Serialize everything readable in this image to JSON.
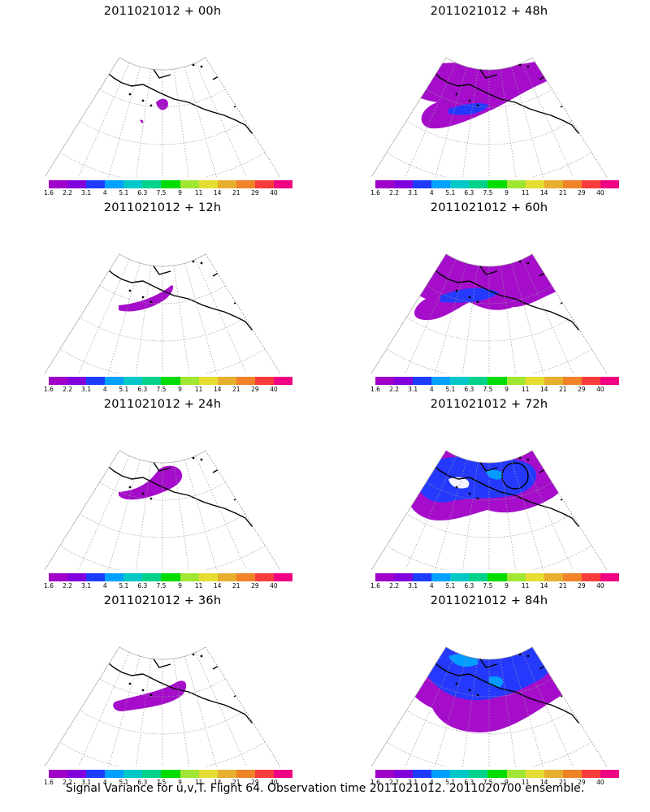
{
  "panels": [
    {
      "title": "2011021012 + 00h",
      "lead_hours": 0,
      "spread_level": 0
    },
    {
      "title": "2011021012 + 48h",
      "lead_hours": 48,
      "spread_level": 4
    },
    {
      "title": "2011021012 + 12h",
      "lead_hours": 12,
      "spread_level": 1
    },
    {
      "title": "2011021012 + 60h",
      "lead_hours": 60,
      "spread_level": 5
    },
    {
      "title": "2011021012 + 24h",
      "lead_hours": 24,
      "spread_level": 2
    },
    {
      "title": "2011021012 + 72h",
      "lead_hours": 72,
      "spread_level": 6
    },
    {
      "title": "2011021012 + 36h",
      "lead_hours": 36,
      "spread_level": 3
    },
    {
      "title": "2011021012 + 84h",
      "lead_hours": 84,
      "spread_level": 7
    }
  ],
  "colorbar": {
    "labels": [
      "1.6",
      "2.2",
      "3.1",
      "4",
      "5.1",
      "6.3",
      "7.5",
      "9",
      "11",
      "14",
      "21",
      "29",
      "40"
    ],
    "colors": [
      "#a000c8",
      "#8200dc",
      "#1e3cff",
      "#00a0ff",
      "#00c8c8",
      "#00d28c",
      "#00dc00",
      "#a0e632",
      "#e6dc32",
      "#e6af2d",
      "#f08228",
      "#fa3c3c",
      "#f00082"
    ]
  },
  "caption": "Signal Variance for u,v,T. Flight 64. Observation time 2011021012. 2011020700 ensemble."
}
